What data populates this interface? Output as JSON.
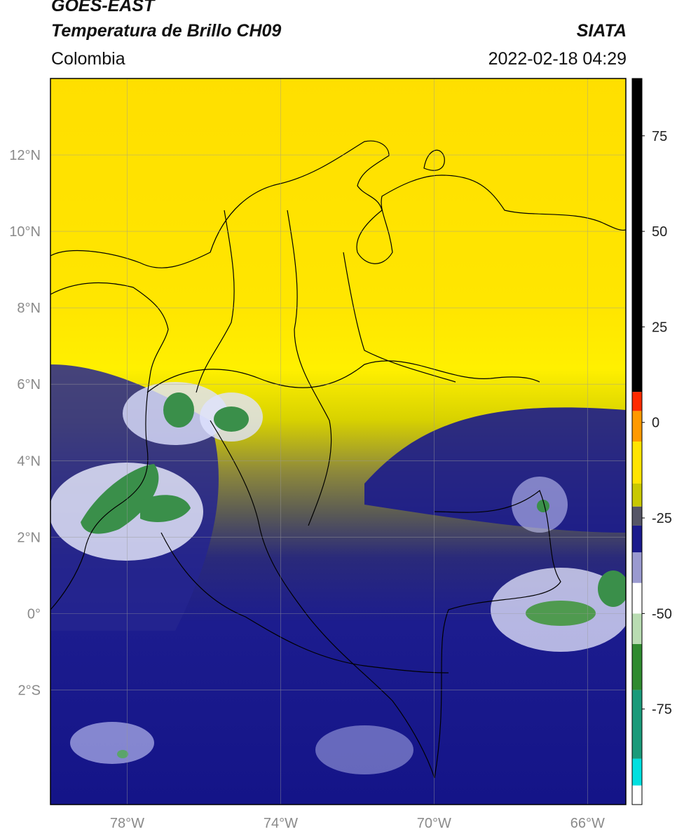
{
  "header": {
    "satellite": "GOES-EAST",
    "product": "Temperatura de Brillo CH09",
    "region": "Colombia",
    "agency": "SIATA",
    "timestamp": "2022-02-18 04:29"
  },
  "map": {
    "extent": {
      "lon_min": -80,
      "lon_max": -65,
      "lat_min": -5,
      "lat_max": 14
    },
    "lat_ticks": [
      {
        "value": 12,
        "label": "12°N"
      },
      {
        "value": 10,
        "label": "10°N"
      },
      {
        "value": 8,
        "label": "8°N"
      },
      {
        "value": 6,
        "label": "6°N"
      },
      {
        "value": 4,
        "label": "4°N"
      },
      {
        "value": 2,
        "label": "2°N"
      },
      {
        "value": 0,
        "label": "0°"
      },
      {
        "value": -2,
        "label": "2°S"
      }
    ],
    "lon_ticks": [
      {
        "value": -78,
        "label": "78°W"
      },
      {
        "value": -74,
        "label": "74°W"
      },
      {
        "value": -70,
        "label": "70°W"
      },
      {
        "value": -66,
        "label": "66°W"
      }
    ],
    "grid": true
  },
  "colorbar": {
    "range": [
      -100,
      90
    ],
    "ticks": [
      {
        "value": 75,
        "label": "75"
      },
      {
        "value": 50,
        "label": "50"
      },
      {
        "value": 25,
        "label": "25"
      },
      {
        "value": 0,
        "label": "0"
      },
      {
        "value": -25,
        "label": "-25"
      },
      {
        "value": -50,
        "label": "-50"
      },
      {
        "value": -75,
        "label": "-75"
      }
    ],
    "segments": [
      {
        "from": -100,
        "to": -95,
        "color": "#ffffff"
      },
      {
        "from": -95,
        "to": -88,
        "color": "#00e0e0"
      },
      {
        "from": -88,
        "to": -70,
        "color": "#1a9a7a"
      },
      {
        "from": -70,
        "to": -58,
        "color": "#2f8a2f"
      },
      {
        "from": -58,
        "to": -50,
        "color": "#b9dcb2"
      },
      {
        "from": -50,
        "to": -42,
        "color": "#ffffff"
      },
      {
        "from": -42,
        "to": -34,
        "color": "#9a9ad0"
      },
      {
        "from": -34,
        "to": -27,
        "color": "#1a1a8c"
      },
      {
        "from": -27,
        "to": -22,
        "color": "#555566"
      },
      {
        "from": -22,
        "to": -16,
        "color": "#c8c800"
      },
      {
        "from": -16,
        "to": -5,
        "color": "#ffe400"
      },
      {
        "from": -5,
        "to": 3,
        "color": "#ff9900"
      },
      {
        "from": 3,
        "to": 8,
        "color": "#ff2a00"
      },
      {
        "from": 8,
        "to": 90,
        "color": "#000000"
      }
    ]
  }
}
